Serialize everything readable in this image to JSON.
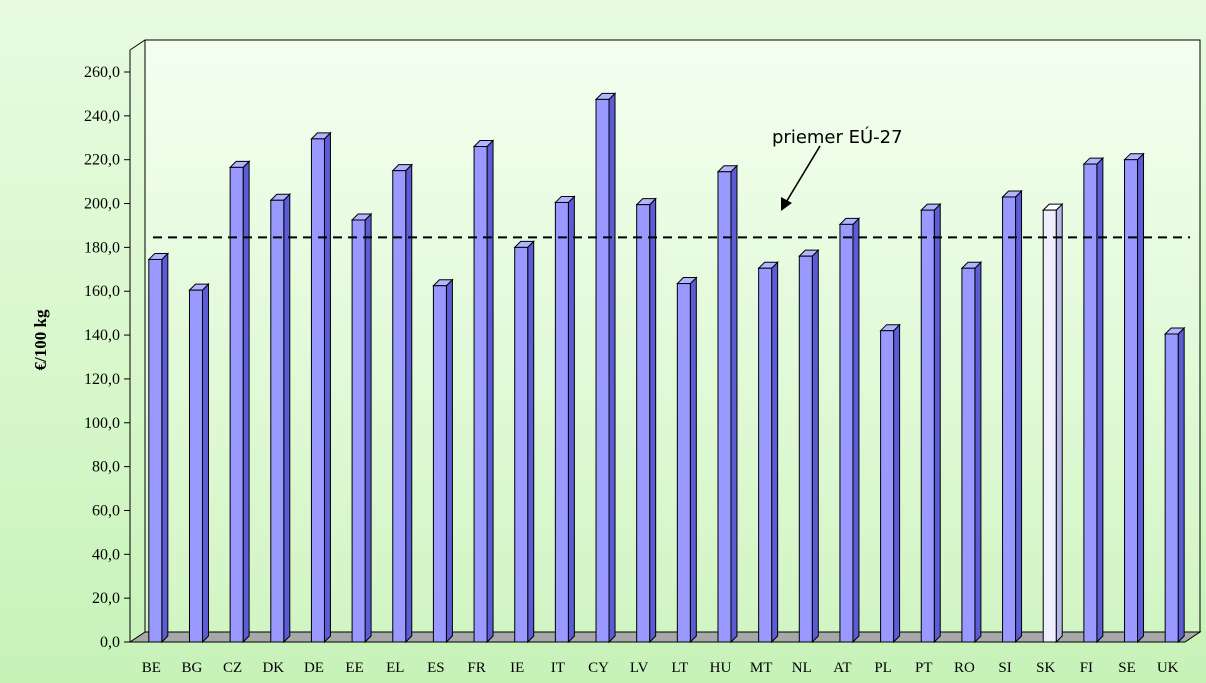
{
  "chart_data": {
    "type": "bar",
    "title": "",
    "xlabel": "",
    "ylabel": "€/100 kg",
    "ylim": [
      0,
      260
    ],
    "yticks": [
      "0,0",
      "20,0",
      "40,0",
      "60,0",
      "80,0",
      "100,0",
      "120,0",
      "140,0",
      "160,0",
      "180,0",
      "200,0",
      "220,0",
      "240,0",
      "260,0"
    ],
    "categories": [
      "BE",
      "BG",
      "CZ",
      "DK",
      "DE",
      "EE",
      "EL",
      "ES",
      "FR",
      "IE",
      "IT",
      "CY",
      "LV",
      "LT",
      "HU",
      "MT",
      "NL",
      "AT",
      "PL",
      "PT",
      "RO",
      "SI",
      "SK",
      "FI",
      "SE",
      "UK"
    ],
    "values": [
      174.5,
      160.5,
      216.5,
      201.5,
      229.5,
      192.5,
      215.0,
      162.5,
      226.0,
      180.0,
      200.5,
      247.5,
      199.5,
      163.5,
      214.5,
      170.5,
      176.0,
      190.5,
      142.0,
      197.0,
      170.5,
      203.0,
      197.0,
      218.0,
      220.0,
      140.5
    ],
    "highlight_category": "SK",
    "reference_line": {
      "value": 185,
      "label": "priemer EÚ-27",
      "style": "dashed"
    },
    "grid": false,
    "legend": "none",
    "colors": {
      "bar_front": "#9999ff",
      "bar_side": "#5c5cd6",
      "bar_top": "#b3b3ff",
      "highlight_front": "#eeeeff",
      "highlight_side": "#b8b8e8",
      "highlight_top": "#ffffff",
      "floor": "#a8a8a8",
      "plot_bg_top": "#f4fff0",
      "plot_bg_bottom": "#d2f5c4"
    }
  }
}
